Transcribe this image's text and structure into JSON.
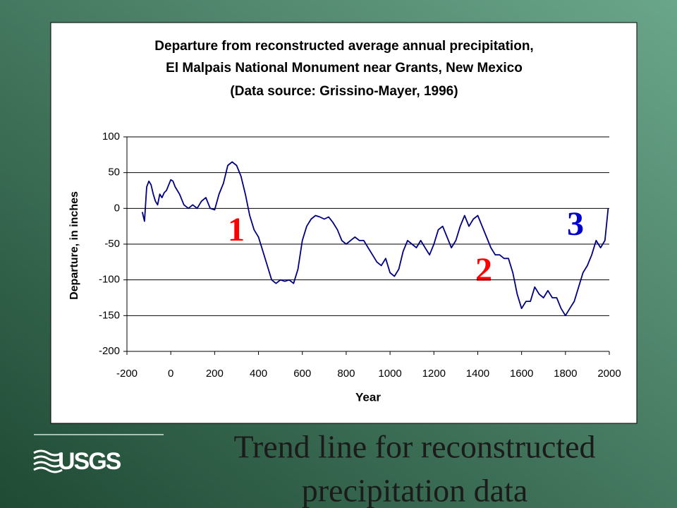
{
  "chart_data": {
    "type": "line",
    "title": [
      "Departure from reconstructed average annual precipitation,",
      "El Malpais National Monument near Grants, New Mexico"
    ],
    "subtitle": "(Data source: Grissino-Mayer, 1996)",
    "x_label": "Year",
    "y_label": "Departure, in inches",
    "x": [
      -130,
      -120,
      -110,
      -100,
      -90,
      -80,
      -70,
      -60,
      -50,
      -40,
      -30,
      -20,
      0,
      10,
      20,
      40,
      60,
      80,
      100,
      120,
      140,
      160,
      180,
      200,
      220,
      240,
      260,
      280,
      300,
      320,
      340,
      360,
      380,
      400,
      420,
      440,
      460,
      480,
      500,
      520,
      540,
      560,
      580,
      600,
      620,
      640,
      660,
      680,
      700,
      720,
      740,
      760,
      780,
      800,
      820,
      840,
      860,
      880,
      900,
      920,
      940,
      960,
      980,
      1000,
      1020,
      1040,
      1060,
      1080,
      1100,
      1120,
      1140,
      1160,
      1180,
      1200,
      1220,
      1240,
      1260,
      1280,
      1300,
      1320,
      1340,
      1360,
      1380,
      1400,
      1420,
      1440,
      1460,
      1480,
      1500,
      1520,
      1540,
      1560,
      1580,
      1600,
      1620,
      1640,
      1660,
      1680,
      1700,
      1720,
      1740,
      1760,
      1780,
      1800,
      1820,
      1840,
      1860,
      1880,
      1900,
      1920,
      1940,
      1960,
      1980,
      1995
    ],
    "values": [
      -5,
      -18,
      30,
      38,
      33,
      20,
      10,
      5,
      20,
      15,
      22,
      25,
      40,
      38,
      30,
      20,
      5,
      0,
      5,
      0,
      10,
      15,
      0,
      -2,
      20,
      35,
      60,
      65,
      60,
      45,
      20,
      -10,
      -30,
      -40,
      -60,
      -80,
      -100,
      -105,
      -100,
      -102,
      -100,
      -105,
      -85,
      -45,
      -25,
      -15,
      -10,
      -12,
      -15,
      -12,
      -20,
      -30,
      -45,
      -50,
      -45,
      -40,
      -45,
      -45,
      -55,
      -65,
      -75,
      -80,
      -70,
      -90,
      -95,
      -85,
      -60,
      -45,
      -50,
      -55,
      -45,
      -55,
      -65,
      -50,
      -30,
      -25,
      -40,
      -55,
      -45,
      -25,
      -10,
      -25,
      -15,
      -10,
      -25,
      -40,
      -55,
      -65,
      -65,
      -70,
      -70,
      -90,
      -120,
      -140,
      -130,
      -130,
      -110,
      -120,
      -125,
      -115,
      -125,
      -125,
      -140,
      -150,
      -140,
      -130,
      -110,
      -90,
      -80,
      -65,
      -45,
      -55,
      -45,
      0
    ],
    "color": "#000080",
    "xlim": [
      -200,
      2000
    ],
    "xticks": [
      -200,
      0,
      200,
      400,
      600,
      800,
      1000,
      1200,
      1400,
      1600,
      1800,
      2000
    ],
    "ylim": [
      -200,
      100
    ],
    "yticks": [
      -200,
      -150,
      -100,
      -50,
      0,
      50,
      100
    ],
    "grid": true,
    "annotations": [
      {
        "text": "1",
        "color": "#ff0000"
      },
      {
        "text": "2",
        "color": "#ff0000"
      },
      {
        "text": "3",
        "color": "#0000cc"
      }
    ]
  },
  "slide": {
    "caption": [
      "Trend line for reconstructed",
      "precipitation data"
    ],
    "logo": "USGS"
  }
}
